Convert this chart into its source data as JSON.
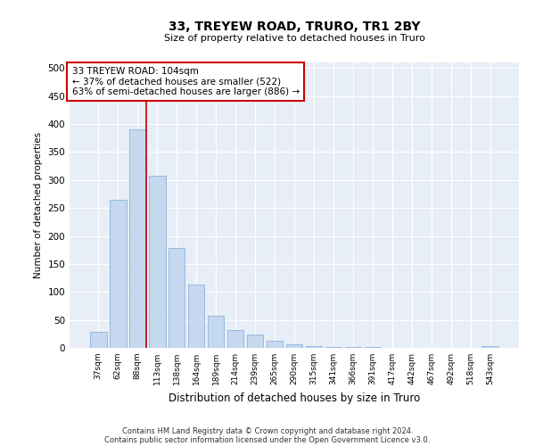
{
  "title1": "33, TREYEW ROAD, TRURO, TR1 2BY",
  "title2": "Size of property relative to detached houses in Truro",
  "xlabel": "Distribution of detached houses by size in Truro",
  "ylabel": "Number of detached properties",
  "categories": [
    "37sqm",
    "62sqm",
    "88sqm",
    "113sqm",
    "138sqm",
    "164sqm",
    "189sqm",
    "214sqm",
    "239sqm",
    "265sqm",
    "290sqm",
    "315sqm",
    "341sqm",
    "366sqm",
    "391sqm",
    "417sqm",
    "442sqm",
    "467sqm",
    "492sqm",
    "518sqm",
    "543sqm"
  ],
  "values": [
    28,
    265,
    390,
    308,
    178,
    113,
    57,
    32,
    24,
    13,
    6,
    3,
    1,
    1,
    1,
    0,
    0,
    0,
    0,
    0,
    3
  ],
  "bar_color": "#c5d8f0",
  "bar_edge_color": "#8ab4d8",
  "bg_color": "#e8eef7",
  "grid_color": "#ffffff",
  "annotation_box_color": "#cc0000",
  "annotation_text": "33 TREYEW ROAD: 104sqm\n← 37% of detached houses are smaller (522)\n63% of semi-detached houses are larger (886) →",
  "marker_bin_index": 2,
  "ylim": [
    0,
    510
  ],
  "yticks": [
    0,
    50,
    100,
    150,
    200,
    250,
    300,
    350,
    400,
    450,
    500
  ],
  "footer1": "Contains HM Land Registry data © Crown copyright and database right 2024.",
  "footer2": "Contains public sector information licensed under the Open Government Licence v3.0."
}
